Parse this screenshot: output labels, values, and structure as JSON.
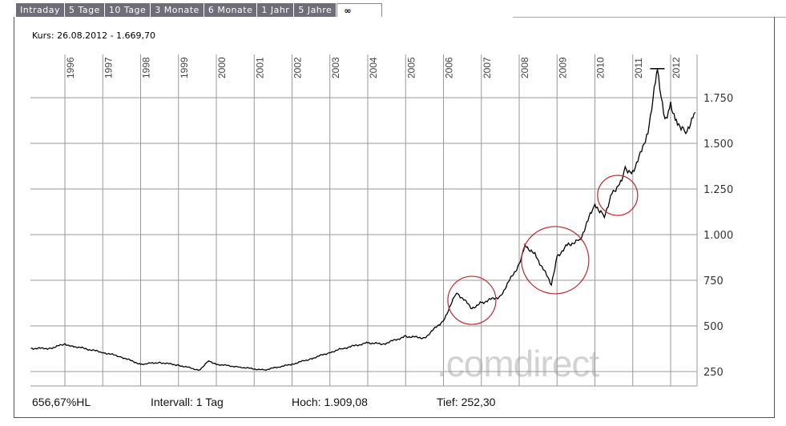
{
  "tabs": [
    {
      "label": "Intraday"
    },
    {
      "label": "5 Tage"
    },
    {
      "label": "10 Tage"
    },
    {
      "label": "3 Monate"
    },
    {
      "label": "6 Monate"
    },
    {
      "label": "1 Jahr"
    },
    {
      "label": "5 Jahre"
    },
    {
      "label": "∞",
      "active": true
    }
  ],
  "header": {
    "kurs": "Kurs: 26.08.2012 - 1.669,70"
  },
  "footer": {
    "change": "656,67%HL",
    "interval": "Intervall: 1 Tag",
    "high": "Hoch:  1.909,08",
    "low": "Tief:  252,30"
  },
  "watermark": ".comdirect",
  "chart_data": {
    "type": "line",
    "title": "",
    "xlabel": "",
    "ylabel": "",
    "x_ticks": [
      "1996",
      "1997",
      "1998",
      "1999",
      "2000",
      "2001",
      "2002",
      "2003",
      "2004",
      "2005",
      "2006",
      "2007",
      "2008",
      "2009",
      "2010",
      "2011",
      "2012"
    ],
    "y_ticks": [
      {
        "value": 250,
        "label": "250"
      },
      {
        "value": 500,
        "label": "500"
      },
      {
        "value": 750,
        "label": "750"
      },
      {
        "value": 1000,
        "label": "1.000"
      },
      {
        "value": 1250,
        "label": "1.250"
      },
      {
        "value": 1500,
        "label": "1.500"
      },
      {
        "value": 1750,
        "label": "1.750"
      }
    ],
    "xlim": [
      1995.1,
      2012.7
    ],
    "ylim": [
      170,
      2000
    ],
    "grid": true,
    "line_color": "#000000",
    "annotation_color": "#c0262c",
    "annotations": [
      {
        "type": "circle",
        "x": 2006.75,
        "y": 640
      },
      {
        "type": "circle",
        "x": 2008.95,
        "y": 860
      },
      {
        "type": "circle",
        "x": 2010.6,
        "y": 1215
      }
    ],
    "high_marker": {
      "x": 2011.65,
      "y": 1909.08
    },
    "series": [
      {
        "points": [
          [
            1995.1,
            377
          ],
          [
            1995.6,
            377
          ],
          [
            1996.0,
            400
          ],
          [
            1996.2,
            390
          ],
          [
            1997.0,
            355
          ],
          [
            1997.45,
            333
          ],
          [
            1998.0,
            290
          ],
          [
            1998.5,
            300
          ],
          [
            1999.0,
            285
          ],
          [
            1999.55,
            258
          ],
          [
            1999.8,
            310
          ],
          [
            2000.0,
            290
          ],
          [
            2000.6,
            275
          ],
          [
            2001.25,
            258
          ],
          [
            2002.0,
            290
          ],
          [
            2002.5,
            320
          ],
          [
            2003.0,
            355
          ],
          [
            2003.35,
            377
          ],
          [
            2004.0,
            408
          ],
          [
            2004.4,
            400
          ],
          [
            2005.0,
            443
          ],
          [
            2005.5,
            434
          ],
          [
            2006.0,
            530
          ],
          [
            2006.35,
            684
          ],
          [
            2006.75,
            597
          ],
          [
            2007.0,
            627
          ],
          [
            2007.5,
            662
          ],
          [
            2008.0,
            838
          ],
          [
            2008.15,
            947
          ],
          [
            2008.45,
            882
          ],
          [
            2008.85,
            728
          ],
          [
            2009.0,
            882
          ],
          [
            2009.3,
            947
          ],
          [
            2009.6,
            969
          ],
          [
            2010.0,
            1167
          ],
          [
            2010.25,
            1101
          ],
          [
            2010.45,
            1232
          ],
          [
            2010.65,
            1276
          ],
          [
            2010.8,
            1364
          ],
          [
            2011.0,
            1342
          ],
          [
            2011.2,
            1452
          ],
          [
            2011.4,
            1561
          ],
          [
            2011.6,
            1846
          ],
          [
            2011.65,
            1909
          ],
          [
            2011.85,
            1627
          ],
          [
            2012.0,
            1715
          ],
          [
            2012.15,
            1627
          ],
          [
            2012.4,
            1561
          ],
          [
            2012.65,
            1670
          ]
        ]
      }
    ]
  }
}
